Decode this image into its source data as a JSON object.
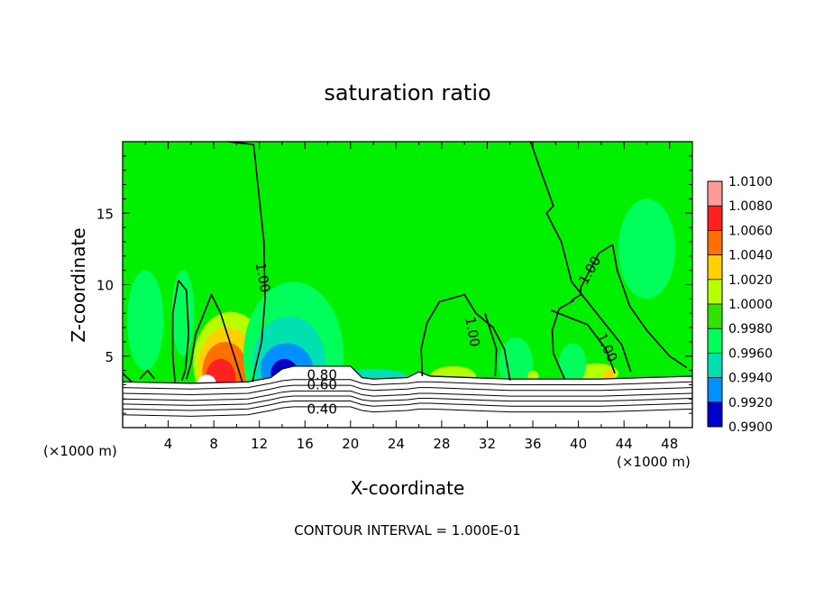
{
  "chart_data": {
    "type": "heatmap",
    "title": "saturation ratio",
    "xlabel": "X-coordinate",
    "ylabel": "Z-coordinate",
    "x_unit_left": "(×1000 m)",
    "x_unit_right": "(×1000 m)",
    "footer": "CONTOUR INTERVAL = 1.000E-01",
    "xlim": [
      0,
      50
    ],
    "ylim": [
      0,
      20
    ],
    "x_ticks": [
      4,
      8,
      12,
      16,
      20,
      24,
      28,
      32,
      36,
      40,
      44,
      48
    ],
    "y_ticks": [
      5,
      10,
      15
    ],
    "colorbar": {
      "levels": [
        "1.0100",
        "1.0080",
        "1.0060",
        "1.0040",
        "1.0020",
        "1.0000",
        "0.9980",
        "0.9960",
        "0.9940",
        "0.9920",
        "0.9900"
      ],
      "colors": [
        "#ff9a9a",
        "#ff2020",
        "#ff7000",
        "#ffd000",
        "#b6ff00",
        "#33e300",
        "#00ff5a",
        "#00e0b0",
        "#0090ff",
        "#0000c8",
        "#7000b0"
      ]
    },
    "background_color": "#00f000",
    "contour_labels": [
      {
        "text": "1.00",
        "x": 12.3,
        "z": 10.5,
        "angle": 80
      },
      {
        "text": "1.00",
        "x": 30.7,
        "z": 6.7,
        "angle": 80
      },
      {
        "text": "1.00",
        "x": 41.0,
        "z": 11.0,
        "angle": -60
      },
      {
        "text": "1.00",
        "x": 42.5,
        "z": 5.6,
        "angle": 65
      },
      {
        "text": "0.80",
        "x": 17.5,
        "z": 3.7,
        "angle": 0
      },
      {
        "text": "0.60",
        "x": 17.5,
        "z": 3.0,
        "angle": 0
      },
      {
        "text": "0.40",
        "x": 17.5,
        "z": 1.3,
        "angle": 0
      }
    ],
    "blobs": [
      {
        "x": 9.5,
        "z": 4.5,
        "rx": 3.3,
        "rz": 3.6,
        "color": "#b6ff00"
      },
      {
        "x": 9.2,
        "z": 4.2,
        "rx": 2.6,
        "rz": 2.8,
        "color": "#ffd000"
      },
      {
        "x": 9.0,
        "z": 3.9,
        "rx": 2.0,
        "rz": 2.1,
        "color": "#ff7000"
      },
      {
        "x": 8.6,
        "z": 3.5,
        "rx": 1.3,
        "rz": 1.3,
        "color": "#ff2020"
      },
      {
        "x": 7.4,
        "z": 3.1,
        "rx": 0.8,
        "rz": 0.6,
        "color": "#ffffff"
      },
      {
        "x": 15.0,
        "z": 5.0,
        "rx": 4.4,
        "rz": 5.2,
        "color": "#00ff5a"
      },
      {
        "x": 14.6,
        "z": 4.6,
        "rx": 3.2,
        "rz": 3.2,
        "color": "#00e0b0"
      },
      {
        "x": 14.4,
        "z": 4.1,
        "rx": 2.3,
        "rz": 1.8,
        "color": "#0090ff"
      },
      {
        "x": 14.2,
        "z": 3.8,
        "rx": 1.2,
        "rz": 1.0,
        "color": "#0000c8"
      },
      {
        "x": 5.3,
        "z": 8.0,
        "rx": 1.0,
        "rz": 3.0,
        "color": "#00ff5a"
      },
      {
        "x": 2.0,
        "z": 7.5,
        "rx": 1.6,
        "rz": 3.5,
        "color": "#00ff5a"
      },
      {
        "x": 22.0,
        "z": 3.6,
        "rx": 3.0,
        "rz": 0.5,
        "color": "#00e0b0"
      },
      {
        "x": 29.0,
        "z": 3.6,
        "rx": 2.0,
        "rz": 0.7,
        "color": "#b6ff00"
      },
      {
        "x": 34.5,
        "z": 4.5,
        "rx": 1.5,
        "rz": 1.8,
        "color": "#00ff5a"
      },
      {
        "x": 36.0,
        "z": 3.6,
        "rx": 0.5,
        "rz": 0.4,
        "color": "#b6ff00"
      },
      {
        "x": 41.5,
        "z": 3.8,
        "rx": 2.0,
        "rz": 0.7,
        "color": "#b6ff00"
      },
      {
        "x": 42.7,
        "z": 3.6,
        "rx": 0.5,
        "rz": 0.5,
        "color": "#ffd000"
      },
      {
        "x": 46.0,
        "z": 12.5,
        "rx": 2.5,
        "rz": 3.5,
        "color": "#00ff5a"
      },
      {
        "x": 39.5,
        "z": 4.5,
        "rx": 1.2,
        "rz": 1.4,
        "color": "#00ff5a"
      }
    ],
    "contours_one": [
      [
        [
          9.2,
          20
        ],
        [
          11.5,
          19.8
        ],
        [
          11.8,
          17.5
        ],
        [
          12.4,
          13
        ],
        [
          12.5,
          9
        ],
        [
          12.2,
          6
        ],
        [
          11.6,
          4
        ],
        [
          11.4,
          3.2
        ]
      ],
      [
        [
          10.5,
          3.2
        ],
        [
          9.8,
          5
        ],
        [
          8.6,
          8
        ],
        [
          7.8,
          9.3
        ],
        [
          6.4,
          6.5
        ],
        [
          6.0,
          4.5
        ],
        [
          5.6,
          3.4
        ]
      ],
      [
        [
          4.6,
          3.2
        ],
        [
          4.4,
          5
        ],
        [
          4.4,
          8
        ],
        [
          4.9,
          10.3
        ],
        [
          5.6,
          9.6
        ],
        [
          5.8,
          6.5
        ],
        [
          5.5,
          4.0
        ],
        [
          5.2,
          3.3
        ]
      ],
      [
        [
          0.0,
          3.8
        ],
        [
          0.8,
          3.2
        ]
      ],
      [
        [
          1.5,
          3.4
        ],
        [
          2.2,
          4.0
        ],
        [
          2.8,
          3.4
        ]
      ],
      [
        [
          35.8,
          20
        ],
        [
          36.9,
          17.5
        ],
        [
          37.8,
          15.5
        ],
        [
          37.2,
          15
        ],
        [
          38.5,
          13
        ],
        [
          39.4,
          10.2
        ],
        [
          41.6,
          8.0
        ],
        [
          43.8,
          5.8
        ],
        [
          44.6,
          3.9
        ]
      ],
      [
        [
          43.0,
          12.8
        ],
        [
          41.8,
          12.2
        ],
        [
          40.2,
          9.8
        ],
        [
          40.2,
          9.3
        ],
        [
          39.4,
          8.9
        ]
      ],
      [
        [
          43.0,
          12.8
        ],
        [
          43.4,
          11.0
        ],
        [
          44.5,
          8.5
        ],
        [
          46.0,
          6.8
        ],
        [
          48.0,
          5.0
        ],
        [
          49.5,
          4.2
        ]
      ],
      [
        [
          39.6,
          8.9
        ],
        [
          38.3,
          8.3
        ],
        [
          37.7,
          6.8
        ],
        [
          37.8,
          5.2
        ],
        [
          38.4,
          4.1
        ],
        [
          38.8,
          3.4
        ]
      ],
      [
        [
          37.6,
          8.2
        ],
        [
          40.8,
          7.2
        ],
        [
          42.4,
          5.5
        ],
        [
          43.2,
          3.8
        ]
      ],
      [
        [
          34.0,
          3.3
        ],
        [
          33.5,
          5.5
        ],
        [
          32.5,
          7.0
        ],
        [
          31.0,
          8.0
        ],
        [
          30.0,
          9.3
        ],
        [
          27.8,
          8.8
        ],
        [
          26.7,
          7.3
        ],
        [
          26.2,
          5.5
        ],
        [
          26.3,
          3.6
        ]
      ],
      [
        [
          31.8,
          8.0
        ],
        [
          32.8,
          5.5
        ],
        [
          32.7,
          3.6
        ]
      ]
    ],
    "terrain_top": [
      [
        0,
        3.2
      ],
      [
        6,
        3.1
      ],
      [
        11,
        3.2
      ],
      [
        13,
        3.5
      ],
      [
        14,
        4.1
      ],
      [
        15,
        4.3
      ],
      [
        20,
        4.3
      ],
      [
        21,
        3.5
      ],
      [
        22,
        3.4
      ],
      [
        25,
        3.5
      ],
      [
        26,
        3.9
      ],
      [
        27,
        3.6
      ],
      [
        34,
        3.4
      ],
      [
        42,
        3.4
      ],
      [
        46,
        3.5
      ],
      [
        50,
        3.6
      ]
    ],
    "contour_levels_low": [
      {
        "value": 0.9,
        "offset": 0.4
      },
      {
        "value": 0.8,
        "offset": 0.8
      },
      {
        "value": 0.7,
        "offset": 1.2
      },
      {
        "value": 0.6,
        "offset": 1.55
      },
      {
        "value": 0.5,
        "offset": 1.9
      },
      {
        "value": 0.4,
        "offset": 2.3
      }
    ]
  }
}
